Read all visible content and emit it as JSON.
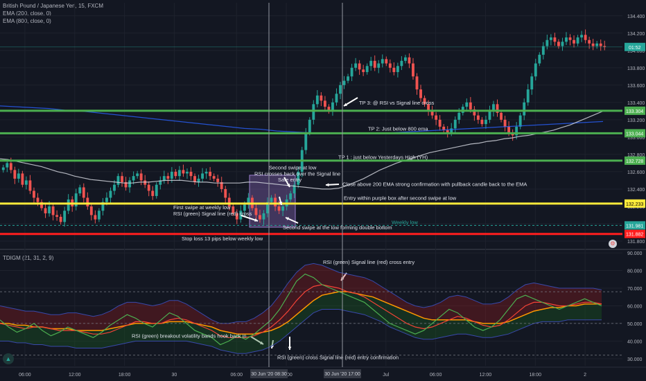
{
  "header": {
    "title": "British Pound / Japanese Yen, 15, FXCM",
    "ema200": "EMA (200, close, 0)",
    "ema800": "EMA (800, close, 0)",
    "indicator": "TDIGM (21, 31, 2, 9)"
  },
  "colors": {
    "background": "#131722",
    "bull": "#26a69a",
    "bear": "#ef5350",
    "tp_line": "#4caf50",
    "entry_line": "#ffeb3b",
    "stop_line": "#ff1e1e",
    "ema200": "#d1d4dc",
    "ema800": "#2962ff",
    "rsi": "#4caf50",
    "signal": "#f44336",
    "mid_line": "#ff9800",
    "purple_box": "#7b5ea7"
  },
  "chart_data": [
    {
      "type": "candlestick",
      "ylim": [
        131.72,
        134.55
      ],
      "y_ticks": [
        "134.400",
        "134.200",
        "134.000",
        "133.800",
        "133.600",
        "133.400",
        "133.200",
        "133.000",
        "132.800",
        "132.600",
        "132.400",
        "132.200",
        "132.000",
        "131.800"
      ],
      "y_tick_values": [
        134.4,
        134.2,
        134.0,
        133.8,
        133.6,
        133.4,
        133.2,
        133.0,
        132.8,
        132.6,
        132.4,
        132.2,
        132.0,
        131.8
      ],
      "x_ticks": [
        {
          "label": "06:00",
          "slot": 2
        },
        {
          "label": "12:00",
          "slot": 6
        },
        {
          "label": "18:00",
          "slot": 10
        },
        {
          "label": "30",
          "slot": 14
        },
        {
          "label": "06:00",
          "slot": 19
        },
        {
          "label": "12:00",
          "slot": 23
        },
        {
          "label": "Jul",
          "slot": 31
        },
        {
          "label": "06:00",
          "slot": 35
        },
        {
          "label": "12:00",
          "slot": 39
        },
        {
          "label": "18:00",
          "slot": 43
        },
        {
          "label": "2",
          "slot": 47
        }
      ],
      "closes": [
        132.65,
        132.7,
        132.62,
        132.52,
        132.58,
        132.45,
        132.5,
        132.38,
        132.3,
        132.25,
        132.18,
        132.12,
        132.2,
        132.1,
        132.08,
        132.02,
        132.15,
        132.28,
        132.2,
        132.35,
        132.42,
        132.3,
        132.2,
        132.1,
        132.05,
        132.15,
        132.25,
        132.3,
        132.38,
        132.45,
        132.55,
        132.48,
        132.42,
        132.5,
        132.55,
        132.58,
        132.5,
        132.45,
        132.38,
        132.32,
        132.45,
        132.5,
        132.55,
        132.52,
        132.6,
        132.55,
        132.62,
        132.58,
        132.6,
        132.55,
        132.48,
        132.52,
        132.58,
        132.6,
        132.55,
        132.52,
        132.48,
        132.4,
        132.3,
        132.2,
        132.12,
        132.05,
        132.15,
        132.22,
        132.3,
        132.18,
        132.1,
        132.05,
        132.12,
        132.25,
        132.3,
        132.2,
        132.15,
        132.2,
        132.28,
        132.35,
        132.45,
        132.6,
        132.85,
        133.05,
        133.2,
        133.38,
        133.48,
        133.42,
        133.35,
        133.3,
        133.4,
        133.5,
        133.6,
        133.65,
        133.7,
        133.8,
        133.85,
        133.78,
        133.75,
        133.82,
        133.88,
        133.8,
        133.85,
        133.9,
        133.85,
        133.8,
        133.75,
        133.82,
        133.88,
        133.92,
        133.85,
        133.7,
        133.55,
        133.45,
        133.38,
        133.3,
        133.25,
        133.2,
        133.12,
        133.08,
        133.05,
        133.1,
        133.2,
        133.28,
        133.35,
        133.4,
        133.32,
        133.25,
        133.2,
        133.15,
        133.2,
        133.3,
        133.38,
        133.28,
        133.2,
        133.12,
        133.05,
        133.02,
        133.12,
        133.25,
        133.4,
        133.55,
        133.7,
        133.85,
        133.95,
        134.05,
        134.12,
        134.15,
        134.1,
        134.05,
        134.1,
        134.15,
        134.12,
        134.08,
        134.15,
        134.18,
        134.12,
        134.08,
        134.05,
        134.08,
        134.05,
        134.04
      ],
      "ema200": [
        132.75,
        132.74,
        132.72,
        132.7,
        132.68,
        132.66,
        132.63,
        132.6,
        132.58,
        132.55,
        132.53,
        132.51,
        132.5,
        132.49,
        132.48,
        132.47,
        132.47,
        132.48,
        132.48,
        132.49,
        132.5,
        132.5,
        132.5,
        132.49,
        132.48,
        132.48,
        132.47,
        132.47,
        132.47,
        132.47,
        132.48,
        132.48,
        132.47,
        132.46,
        132.45,
        132.44,
        132.43,
        132.42,
        132.41,
        132.4,
        132.4,
        132.41,
        132.44,
        132.48,
        132.52,
        132.57,
        132.62,
        132.66,
        132.7,
        132.73,
        132.76,
        132.79,
        132.82,
        132.84,
        132.86,
        132.88,
        132.9,
        132.92,
        132.93,
        132.95,
        132.96,
        132.98,
        132.99,
        133.01,
        133.02,
        133.04,
        133.06,
        133.08,
        133.11,
        133.14,
        133.18,
        133.22,
        133.26,
        133.3
      ],
      "ema800": [
        133.36,
        133.35,
        133.34,
        133.33,
        133.31,
        133.3,
        133.28,
        133.26,
        133.24,
        133.22,
        133.2,
        133.18,
        133.16,
        133.14,
        133.12,
        133.1,
        133.09,
        133.07,
        133.06,
        133.05,
        133.04,
        133.04,
        133.04,
        133.04,
        133.05,
        133.06,
        133.07,
        133.08,
        133.09,
        133.1,
        133.11,
        133.12,
        133.13,
        133.14,
        133.15,
        133.16,
        133.17,
        133.18
      ],
      "levels": [
        {
          "price": 133.304,
          "label": "133.304",
          "kind": "tp"
        },
        {
          "price": 133.044,
          "label": "133.044",
          "kind": "tp"
        },
        {
          "price": 132.728,
          "label": "132.728",
          "kind": "tp"
        },
        {
          "price": 132.233,
          "label": "132.233",
          "kind": "entry"
        },
        {
          "price": 131.882,
          "label": "131.882",
          "kind": "stop"
        }
      ],
      "weekly_low": {
        "price": 131.981,
        "label": "131.981"
      },
      "current": {
        "price": 134.04,
        "label": "01:52"
      },
      "annotations": [
        {
          "text": "TP 3: @ RSI vs Signal line cross",
          "price": 133.4
        },
        {
          "text": "TP 2: Just below 800 ema",
          "price": 133.1
        },
        {
          "text": "TP 1 : just below Yesterdays High (YH)",
          "price": 132.77
        },
        {
          "text": "Second swipe at low",
          "price": 132.65
        },
        {
          "text": "RSI crosses back over the Signal line",
          "price": 132.58
        },
        {
          "text": "Safe entry",
          "price": 132.51
        },
        {
          "text": "Close above 200 EMA strong confirmation with pullback candle back to the EMA",
          "price": 132.46
        },
        {
          "text": "Entry within purple box after second swipe at low",
          "price": 132.3
        },
        {
          "text": "First swipe at weekly low",
          "price": 132.19
        },
        {
          "text": "RSI (green) Signal line (red) cross",
          "price": 132.12
        },
        {
          "text": "Weekly low",
          "price": 132.02
        },
        {
          "text": "Second swipe at the low forming double bottom",
          "price": 131.96
        },
        {
          "text": "Stop loss 13 pips below weekly low",
          "price": 131.83
        }
      ]
    },
    {
      "type": "line",
      "name": "TDIGM",
      "ylim": [
        26,
        92
      ],
      "y_ticks": [
        "90.000",
        "80.000",
        "70.000",
        "60.000",
        "50.000",
        "40.000",
        "30.000"
      ],
      "y_tick_values": [
        90,
        80,
        70,
        60,
        50,
        40,
        30
      ],
      "levels": [
        68,
        50,
        32
      ],
      "rsi": [
        52,
        48,
        45,
        47,
        50,
        46,
        43,
        45,
        48,
        46,
        44,
        42,
        45,
        49,
        52,
        55,
        53,
        50,
        48,
        52,
        56,
        54,
        50,
        46,
        44,
        42,
        38,
        40,
        43,
        41,
        44,
        48,
        52,
        58,
        66,
        74,
        78,
        76,
        72,
        70,
        68,
        66,
        64,
        62,
        58,
        54,
        50,
        48,
        46,
        44,
        46,
        50,
        54,
        58,
        56,
        52,
        48,
        46,
        48,
        52,
        58,
        64,
        66,
        64,
        62,
        60,
        58,
        60,
        62,
        64,
        62,
        60
      ],
      "signal": [
        50,
        49,
        48,
        47,
        48,
        48,
        47,
        46,
        46,
        46,
        45,
        44,
        44,
        45,
        47,
        49,
        51,
        51,
        50,
        50,
        52,
        53,
        52,
        50,
        48,
        46,
        43,
        42,
        42,
        42,
        43,
        45,
        48,
        52,
        57,
        63,
        68,
        71,
        72,
        71,
        70,
        68,
        67,
        65,
        62,
        59,
        56,
        53,
        50,
        48,
        47,
        48,
        50,
        52,
        54,
        53,
        51,
        49,
        48,
        49,
        52,
        56,
        60,
        62,
        62,
        61,
        60,
        60,
        61,
        62,
        62,
        61
      ],
      "mid": [
        50,
        50,
        49,
        49,
        48,
        48,
        47,
        47,
        47,
        46,
        46,
        46,
        46,
        47,
        48,
        49,
        50,
        50,
        50,
        50,
        51,
        51,
        51,
        50,
        49,
        48,
        46,
        45,
        44,
        44,
        44,
        45,
        46,
        48,
        51,
        55,
        59,
        63,
        66,
        67,
        68,
        68,
        67,
        66,
        65,
        63,
        61,
        59,
        57,
        55,
        53,
        52,
        52,
        52,
        52,
        52,
        51,
        50,
        50,
        50,
        51,
        53,
        55,
        57,
        58,
        59,
        59,
        60,
        60,
        61,
        61,
        61
      ],
      "band_upper": [
        60,
        59,
        58,
        57,
        57,
        56,
        55,
        55,
        56,
        56,
        55,
        54,
        55,
        57,
        60,
        62,
        62,
        61,
        60,
        61,
        63,
        63,
        61,
        58,
        55,
        52,
        50,
        50,
        51,
        51,
        53,
        56,
        60,
        66,
        73,
        79,
        83,
        84,
        83,
        81,
        79,
        78,
        77,
        76,
        74,
        71,
        68,
        65,
        62,
        60,
        59,
        60,
        62,
        65,
        66,
        65,
        63,
        61,
        61,
        62,
        65,
        69,
        72,
        73,
        72,
        71,
        70,
        70,
        70,
        70,
        70,
        69
      ],
      "band_lower": [
        40,
        40,
        39,
        39,
        38,
        38,
        37,
        37,
        37,
        36,
        36,
        36,
        36,
        37,
        38,
        39,
        40,
        40,
        40,
        40,
        40,
        40,
        40,
        39,
        38,
        37,
        35,
        34,
        33,
        33,
        34,
        35,
        37,
        40,
        44,
        48,
        52,
        56,
        58,
        58,
        58,
        57,
        56,
        55,
        53,
        51,
        48,
        46,
        44,
        42,
        41,
        41,
        42,
        43,
        44,
        44,
        43,
        42,
        42,
        43,
        44,
        46,
        48,
        50,
        51,
        51,
        51,
        52,
        52,
        52,
        52,
        52
      ],
      "annotations": [
        {
          "text": "RSI (green) Signal line (red) cross entry",
          "value": 85
        },
        {
          "text": "RSI (green) breakout volatility bands hook back in",
          "value": 43
        },
        {
          "text": "RSI (green) cross Signal line (red) entry confirmation",
          "value": 31
        }
      ]
    }
  ],
  "crosshair": {
    "labels": [
      "30 Jun '20  08:30",
      "30 Jun '20  17:00"
    ]
  }
}
